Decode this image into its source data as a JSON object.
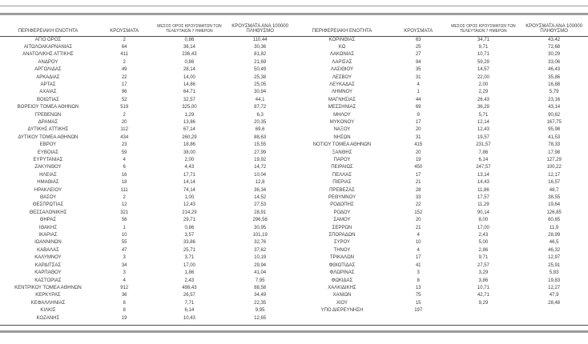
{
  "colors": {
    "text": "#3a3a3a",
    "rule_light": "#9c9c9c",
    "rule_dark": "#4d4d4d"
  },
  "table": {
    "headers": [
      "ΠΕΡΙΦΕΡΕΙΑΚΗ ΕΝΟΤΗΤΑ",
      "ΚΡΟΥΣΜΑΤΑ",
      "ΜΕΣΟΣ ΟΡΟΣ ΚΡΟΥΣΜΑΤΩΝ ΤΩΝ ΤΕΛΕΥΤΑΙΩΝ 7 ΗΜΕΡΩΝ",
      "ΚΡΟΥΣΜΑΤΑ ΑΝΑ 100000 ΠΛΗΘΥΣΜΟ"
    ],
    "left_rows": [
      [
        "ΑΓΙΟ ΟΡΟΣ",
        "2",
        "0,86",
        "110,44"
      ],
      [
        "ΑΙΤΩΛΟΑΚΑΡΝΑΝΙΑΣ",
        "64",
        "36,14",
        "30,36"
      ],
      [
        "ΑΝΑΤΟΛΙΚΗΣ ΑΤΤΙΚΗΣ",
        "411",
        "236,43",
        "81,82"
      ],
      [
        "ΑΝΔΡΟΥ",
        "2",
        "0,86",
        "21,69"
      ],
      [
        "ΑΡΓΟΛΙΔΑΣ",
        "49",
        "28,14",
        "50,49"
      ],
      [
        "ΑΡΚΑΔΙΑΣ",
        "22",
        "14,00",
        "25,38"
      ],
      [
        "ΑΡΤΑΣ",
        "17",
        "14,86",
        "25,05"
      ],
      [
        "ΑΧΑΪΑΣ",
        "96",
        "64,71",
        "30,94"
      ],
      [
        "ΒΟΙΩΤΙΑΣ",
        "52",
        "32,57",
        "44,1"
      ],
      [
        "ΒΟΡΕΙΟΥ ΤΟΜΕΑ ΑΘΗΝΩΝ",
        "519",
        "325,00",
        "87,72"
      ],
      [
        "ΓΡΕΒΕΝΩΝ",
        "2",
        "1,29",
        "6,3"
      ],
      [
        "ΔΡΑΜΑΣ",
        "20",
        "13,86",
        "20,35"
      ],
      [
        "ΔΥΤΙΚΗΣ ΑΤΤΙΚΗΣ",
        "112",
        "67,14",
        "69,6"
      ],
      [
        "ΔΥΤΙΚΟΥ ΤΟΜΕΑ ΑΘΗΝΩΝ",
        "434",
        "260,29",
        "88,63"
      ],
      [
        "ΕΒΡΟΥ",
        "23",
        "18,86",
        "15,55"
      ],
      [
        "ΕΥΒΟΙΑΣ",
        "59",
        "38,00",
        "27,99"
      ],
      [
        "ΕΥΡΥΤΑΝΙΑΣ",
        "4",
        "2,00",
        "19,92"
      ],
      [
        "ΖΑΚΥΝΘΟΥ",
        "6",
        "4,43",
        "14,72"
      ],
      [
        "ΗΛΕΙΑΣ",
        "16",
        "17,71",
        "10,04"
      ],
      [
        "ΗΜΑΘΙΑΣ",
        "18",
        "14,14",
        "12,8"
      ],
      [
        "ΗΡΑΚΛΕΙΟΥ",
        "111",
        "74,14",
        "36,34"
      ],
      [
        "ΘΑΣΟΥ",
        "2",
        "1,00",
        "14,52"
      ],
      [
        "ΘΕΣΠΡΩΤΙΑΣ",
        "12",
        "12,43",
        "27,53"
      ],
      [
        "ΘΕΣΣΑΛΟΝΙΚΗΣ",
        "321",
        "214,29",
        "28,91"
      ],
      [
        "ΘΗΡΑΣ",
        "56",
        "29,71",
        "296,56"
      ],
      [
        "ΙΘΑΚΗΣ",
        "1",
        "0,86",
        "30,95"
      ],
      [
        "ΙΚΑΡΙΑΣ",
        "10",
        "3,57",
        "101,19"
      ],
      [
        "ΙΩΑΝΝΙΝΩΝ",
        "55",
        "33,86",
        "32,76"
      ],
      [
        "ΚΑΒΑΛΑΣ",
        "47",
        "25,71",
        "37,62"
      ],
      [
        "ΚΑΛΥΜΝΟΥ",
        "3",
        "3,71",
        "10,19"
      ],
      [
        "ΚΑΡΔΙΤΣΑΣ",
        "34",
        "17,00",
        "29,94"
      ],
      [
        "ΚΑΡΠΑΘΟΥ",
        "3",
        "1,86",
        "41,04"
      ],
      [
        "ΚΑΣΤΟΡΙΑΣ",
        "4",
        "2,43",
        "7,95"
      ],
      [
        "ΚΕΝΤΡΙΚΟΥ ΤΟΜΕΑ ΑΘΗΝΩΝ",
        "912",
        "498,43",
        "88,58"
      ],
      [
        "ΚΕΡΚΥΡΑΣ",
        "36",
        "26,57",
        "34,49"
      ],
      [
        "ΚΕΦΑΛΛΗΝΙΑΣ",
        "8",
        "7,71",
        "22,35"
      ],
      [
        "ΚΙΛΚΙΣ",
        "8",
        "6,14",
        "9,95"
      ],
      [
        "ΚΟΖΑΝΗΣ",
        "19",
        "10,43",
        "12,65"
      ]
    ],
    "right_rows": [
      [
        "ΚΟΡΙΝΘΙΑΣ",
        "63",
        "34,71",
        "43,42"
      ],
      [
        "ΚΩ",
        "25",
        "9,71",
        "72,68"
      ],
      [
        "ΛΑΚΩΝΙΑΣ",
        "27",
        "10,71",
        "30,29"
      ],
      [
        "ΛΑΡΙΣΑΣ",
        "94",
        "59,29",
        "33,06"
      ],
      [
        "ΛΑΣΙΘΙΟΥ",
        "35",
        "14,57",
        "46,43"
      ],
      [
        "ΛΕΣΒΟΥ",
        "31",
        "22,00",
        "35,86"
      ],
      [
        "ΛΕΥΚΑΔΑΣ",
        "4",
        "2,00",
        "16,88"
      ],
      [
        "ΛΗΜΝΟΥ",
        "1",
        "2,29",
        "5,79"
      ],
      [
        "ΜΑΓΝΗΣΙΑΣ",
        "44",
        "26,43",
        "23,16"
      ],
      [
        "ΜΕΣΣΗΝΙΑΣ",
        "69",
        "36,29",
        "43,14"
      ],
      [
        "ΜΗΛΟΥ",
        "9",
        "5,71",
        "90,62"
      ],
      [
        "ΜΥΚΟΝΟΥ",
        "17",
        "12,14",
        "167,75"
      ],
      [
        "ΝΑΞΟΥ",
        "20",
        "12,43",
        "95,98"
      ],
      [
        "ΝΗΣΩΝ",
        "31",
        "19,57",
        "41,53"
      ],
      [
        "ΝΟΤΙΟΥ ΤΟΜΕΑ ΑΘΗΝΩΝ",
        "415",
        "231,57",
        "78,33"
      ],
      [
        "ΞΑΝΘΗΣ",
        "20",
        "7,86",
        "17,98"
      ],
      [
        "ΠΑΡΟΥ",
        "19",
        "6,14",
        "127,29"
      ],
      [
        "ΠΕΙΡΑΙΩΣ",
        "450",
        "247,57",
        "100,22"
      ],
      [
        "ΠΕΛΛΑΣ",
        "17",
        "13,14",
        "12,17"
      ],
      [
        "ΠΙΕΡΙΑΣ",
        "21",
        "14,43",
        "16,57"
      ],
      [
        "ΠΡΕΒΕΖΑΣ",
        "28",
        "11,86",
        "48,7"
      ],
      [
        "ΡΕΘΥΜΝΟΥ",
        "33",
        "17,57",
        "38,55"
      ],
      [
        "ΡΟΔΟΠΗΣ",
        "22",
        "11,29",
        "19,64"
      ],
      [
        "ΡΟΔΟΥ",
        "152",
        "90,14",
        "126,85"
      ],
      [
        "ΣΑΜΟΥ",
        "20",
        "8,00",
        "60,65"
      ],
      [
        "ΣΕΡΡΩΝ",
        "21",
        "17,00",
        "11,9"
      ],
      [
        "ΣΠΟΡΑΔΩΝ",
        "4",
        "2,43",
        "28,99"
      ],
      [
        "ΣΥΡΟΥ",
        "10",
        "5,00",
        "46,5"
      ],
      [
        "ΤΗΝΟΥ",
        "4",
        "2,86",
        "46,32"
      ],
      [
        "ΤΡΙΚΑΛΩΝ",
        "17",
        "9,71",
        "12,97"
      ],
      [
        "ΦΘΙΩΤΙΔΑΣ",
        "41",
        "27,57",
        "25,91"
      ],
      [
        "ΦΛΩΡΙΝΑΣ",
        "3",
        "3,29",
        "5,83"
      ],
      [
        "ΦΩΚΙΔΑΣ",
        "8",
        "3,86",
        "19,83"
      ],
      [
        "ΧΑΛΚΙΔΙΚΗΣ",
        "13",
        "10,71",
        "12,27"
      ],
      [
        "ΧΑΝΙΩΝ",
        "75",
        "42,71",
        "47,9"
      ],
      [
        "ΧΙΟΥ",
        "15",
        "9,29",
        "28,48"
      ],
      [
        "ΥΠΟ ΔΙΕΡΕΥΝΗΣΗ",
        "197",
        "",
        ""
      ]
    ]
  }
}
